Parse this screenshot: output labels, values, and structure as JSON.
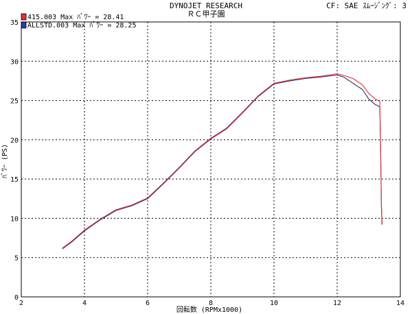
{
  "header": {
    "title": "DYNOJET  RESEARCH",
    "subtitle": "ＲＣ甲子園",
    "info": "CF: SAE  ｽﾑｰｼﾞﾝｸﾞ: 3"
  },
  "colors": {
    "series_red": "#e0303a",
    "series_blue": "#2a2a6a",
    "grid": "#000000",
    "axis": "#000000"
  },
  "chart_data": {
    "type": "line",
    "title": "DYNOJET  RESEARCH",
    "xlabel": "回転数 (RPMx1000)",
    "ylabel": "ﾊﾟﾜｰ (PS)",
    "xlim": [
      2,
      14
    ],
    "ylim": [
      0,
      35
    ],
    "xticks": [
      "2",
      "4",
      "6",
      "8",
      "10",
      "12",
      "14"
    ],
    "yticks": [
      "0",
      "5",
      "10",
      "15",
      "20",
      "25",
      "30",
      "35"
    ],
    "grid": true,
    "legend_position": "top-left",
    "series": [
      {
        "name": "415.003 Max ﾊﾟﾜｰ = 28.41",
        "color": "#e0303a",
        "x": [
          3.3,
          3.6,
          4.0,
          4.5,
          5.0,
          5.5,
          6.0,
          6.5,
          7.0,
          7.5,
          8.0,
          8.5,
          9.0,
          9.5,
          10.0,
          10.5,
          11.0,
          11.5,
          12.0,
          12.2,
          12.5,
          12.8,
          13.0,
          13.2,
          13.35,
          13.38,
          13.4,
          13.42,
          13.43
        ],
        "y": [
          6.2,
          7.1,
          8.5,
          9.9,
          11.1,
          11.7,
          12.6,
          14.5,
          16.5,
          18.6,
          20.2,
          21.5,
          23.5,
          25.6,
          27.2,
          27.6,
          27.9,
          28.1,
          28.41,
          28.2,
          27.8,
          27.0,
          25.9,
          25.2,
          24.9,
          18.0,
          12.0,
          9.6,
          9.4
        ]
      },
      {
        "name": "ALLSTD.003 Max ﾊﾟﾜｰ = 28.25",
        "color": "#2a2a6a",
        "x": [
          3.3,
          3.6,
          4.0,
          4.5,
          5.0,
          5.5,
          6.0,
          6.5,
          7.0,
          7.5,
          8.0,
          8.5,
          9.0,
          9.5,
          10.0,
          10.5,
          11.0,
          11.5,
          12.0,
          12.2,
          12.5,
          12.8,
          13.0,
          13.2,
          13.35,
          13.38,
          13.4,
          13.42,
          13.43
        ],
        "y": [
          6.1,
          7.0,
          8.4,
          9.8,
          11.0,
          11.6,
          12.5,
          14.4,
          16.4,
          18.5,
          20.1,
          21.4,
          23.4,
          25.5,
          27.1,
          27.5,
          27.8,
          28.0,
          28.25,
          28.0,
          27.2,
          26.4,
          25.2,
          24.5,
          24.2,
          17.5,
          11.5,
          9.3,
          9.2
        ]
      }
    ]
  }
}
